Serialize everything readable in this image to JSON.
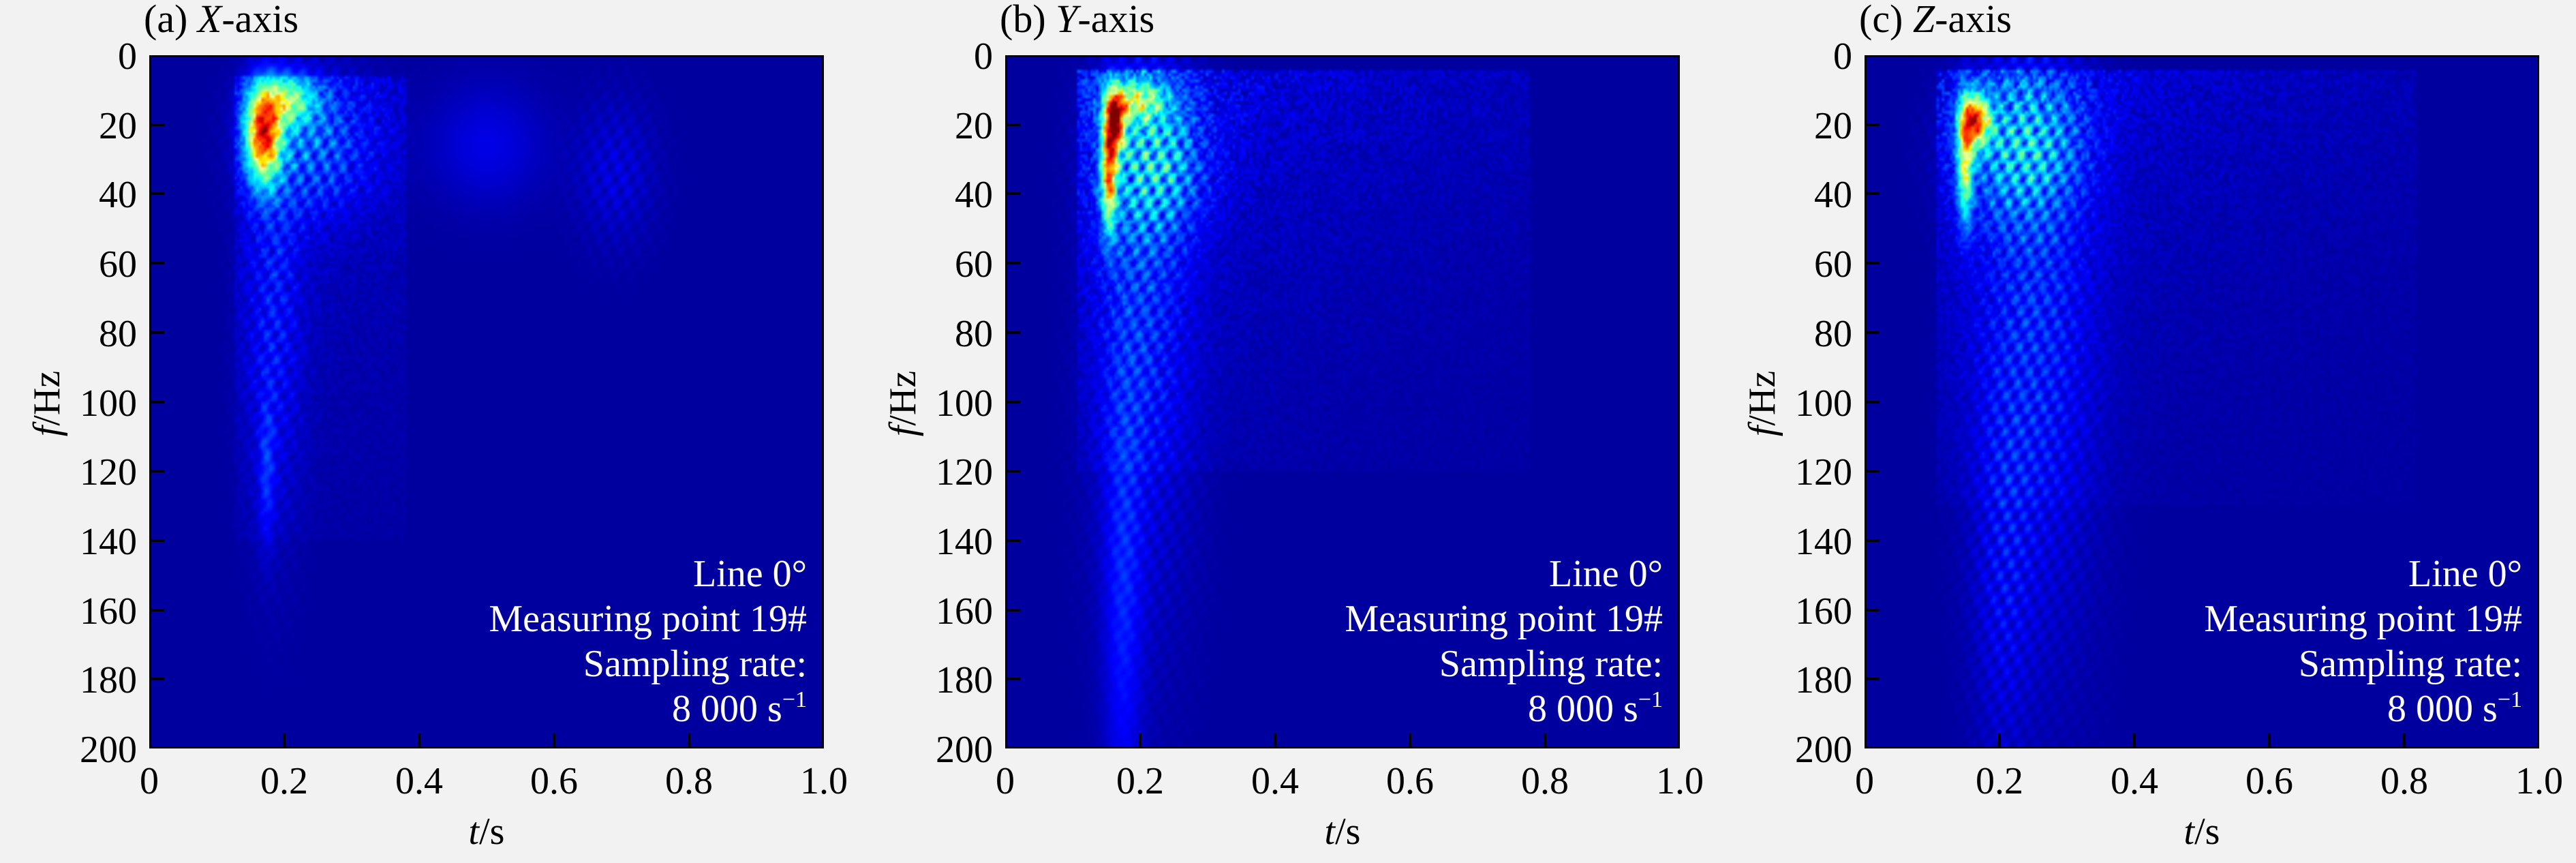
{
  "chart_data": [
    {
      "type": "heatmap",
      "panel_label": "(a)",
      "title_var": "X",
      "title_suffix": "-axis",
      "xlabel_var": "t",
      "xlabel_unit": "/s",
      "ylabel_var": "f",
      "ylabel_unit": "/Hz",
      "xlim": [
        0,
        1.0
      ],
      "ylim": [
        200,
        0
      ],
      "xticks": [
        "0",
        "0.2",
        "0.4",
        "0.6",
        "0.8",
        "1.0"
      ],
      "yticks": [
        "0",
        "20",
        "40",
        "60",
        "80",
        "100",
        "120",
        "140",
        "160",
        "180",
        "200"
      ],
      "colormap": "jet",
      "annotation": [
        "Line 0°",
        "Measuring point 19#",
        "Sampling rate:",
        "8 000 s",
        "−1"
      ],
      "energy_regions": [
        {
          "t": 0.165,
          "f": 22,
          "st": 0.018,
          "sf": 9,
          "a": 0.72
        },
        {
          "t": 0.2,
          "f": 12,
          "st": 0.03,
          "sf": 5,
          "a": 0.35
        },
        {
          "t": 0.24,
          "f": 25,
          "st": 0.06,
          "sf": 14,
          "a": 0.25,
          "ripple": 1
        },
        {
          "t": 0.18,
          "f": 75,
          "st": 0.03,
          "sf": 40,
          "a": 0.15,
          "ripple": 1
        },
        {
          "t": 0.17,
          "f": 120,
          "st": 0.008,
          "sf": 15,
          "a": 0.1
        },
        {
          "t": 0.5,
          "f": 25,
          "st": 0.06,
          "sf": 12,
          "a": 0.07
        },
        {
          "t": 0.69,
          "f": 33,
          "st": 0.04,
          "sf": 14,
          "a": 0.1,
          "ripple": 1
        }
      ],
      "noise": {
        "t0": 0.12,
        "t1": 0.38,
        "f0": 5,
        "f1": 140,
        "level": 0.06
      }
    },
    {
      "type": "heatmap",
      "panel_label": "(b)",
      "title_var": "Y",
      "title_suffix": "-axis",
      "xlabel_var": "t",
      "xlabel_unit": "/s",
      "ylabel_var": "f",
      "ylabel_unit": "/Hz",
      "xlim": [
        0,
        1.0
      ],
      "ylim": [
        200,
        0
      ],
      "xticks": [
        "0",
        "0.2",
        "0.4",
        "0.6",
        "0.8",
        "1.0"
      ],
      "yticks": [
        "0",
        "20",
        "40",
        "60",
        "80",
        "100",
        "120",
        "140",
        "160",
        "180",
        "200"
      ],
      "colormap": "jet",
      "annotation": [
        "Line 0°",
        "Measuring point 19#",
        "Sampling rate:",
        "8 000 s",
        "−1"
      ],
      "energy_regions": [
        {
          "t": 0.16,
          "f": 18,
          "st": 0.01,
          "sf": 6,
          "a": 0.68
        },
        {
          "t": 0.15,
          "f": 32,
          "st": 0.008,
          "sf": 12,
          "a": 0.6
        },
        {
          "t": 0.19,
          "f": 12,
          "st": 0.03,
          "sf": 4,
          "a": 0.35
        },
        {
          "t": 0.22,
          "f": 30,
          "st": 0.05,
          "sf": 14,
          "a": 0.35,
          "ripple": 1
        },
        {
          "t": 0.2,
          "f": 70,
          "st": 0.05,
          "sf": 60,
          "a": 0.18,
          "ripple": 1
        },
        {
          "t": 0.17,
          "f": 160,
          "st": 0.02,
          "sf": 50,
          "a": 0.1
        }
      ],
      "noise": {
        "t0": 0.1,
        "t1": 0.78,
        "f0": 3,
        "f1": 120,
        "level": 0.09
      }
    },
    {
      "type": "heatmap",
      "panel_label": "(c)",
      "title_var": "Z",
      "title_suffix": "-axis",
      "xlabel_var": "t",
      "xlabel_unit": "/s",
      "ylabel_var": "f",
      "ylabel_unit": "/Hz",
      "xlim": [
        0,
        1.0
      ],
      "ylim": [
        200,
        0
      ],
      "xticks": [
        "0",
        "0.2",
        "0.4",
        "0.6",
        "0.8",
        "1.0"
      ],
      "yticks": [
        "0",
        "20",
        "40",
        "60",
        "80",
        "100",
        "120",
        "140",
        "160",
        "180",
        "200"
      ],
      "colormap": "jet",
      "annotation": [
        "Line 0°",
        "Measuring point 19#",
        "Sampling rate:",
        "8 000 s",
        "−1"
      ],
      "energy_regions": [
        {
          "t": 0.16,
          "f": 18,
          "st": 0.015,
          "sf": 5,
          "a": 0.65
        },
        {
          "t": 0.145,
          "f": 30,
          "st": 0.008,
          "sf": 12,
          "a": 0.45
        },
        {
          "t": 0.23,
          "f": 25,
          "st": 0.06,
          "sf": 14,
          "a": 0.35,
          "ripple": 1
        },
        {
          "t": 0.25,
          "f": 80,
          "st": 0.06,
          "sf": 60,
          "a": 0.18,
          "ripple": 1
        },
        {
          "t": 0.2,
          "f": 150,
          "st": 0.03,
          "sf": 40,
          "a": 0.1,
          "ripple": 1
        }
      ],
      "noise": {
        "t0": 0.1,
        "t1": 0.82,
        "f0": 3,
        "f1": 130,
        "level": 0.08
      }
    }
  ]
}
